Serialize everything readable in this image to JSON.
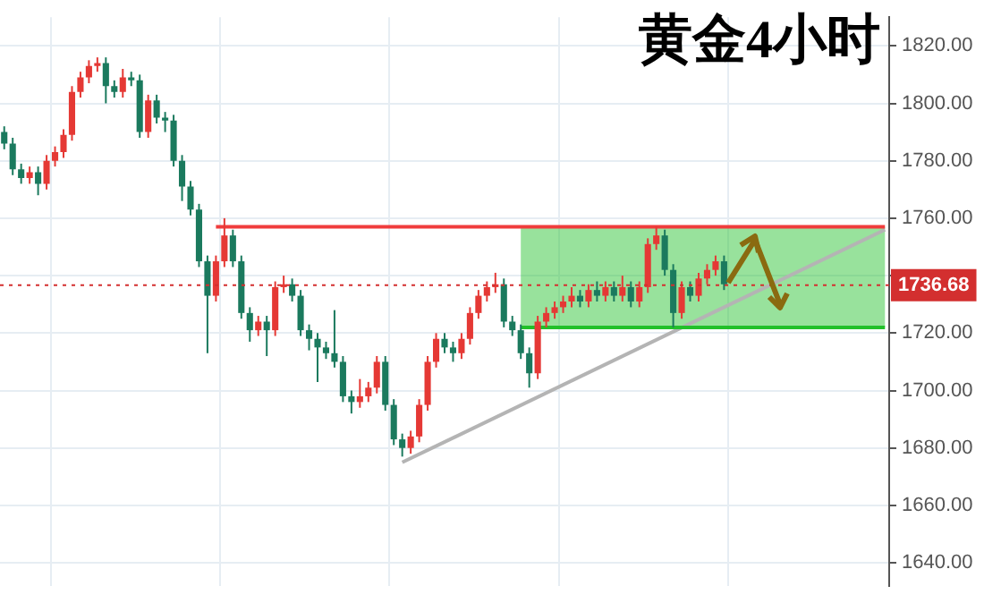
{
  "chart_data": {
    "type": "candlestick",
    "title": "黄金4小时",
    "categories": [
      null,
      null,
      null,
      null,
      null,
      null,
      null,
      null,
      null,
      null,
      null,
      null,
      null,
      null,
      null,
      null,
      null,
      null,
      null,
      null,
      null,
      null,
      null,
      null,
      null,
      null,
      null,
      null,
      null,
      null,
      null,
      null,
      null,
      null,
      null,
      null,
      null,
      null,
      null,
      null,
      null,
      null,
      null,
      null,
      null,
      null,
      null,
      null,
      null,
      null,
      null,
      null,
      null,
      null,
      null,
      null,
      null,
      null,
      null,
      null,
      null,
      null,
      null,
      null,
      null,
      null,
      null,
      null,
      null,
      null,
      null,
      null,
      null,
      null,
      null,
      null,
      null,
      null,
      null,
      null,
      null,
      null,
      null,
      null,
      null,
      null,
      null,
      null,
      null,
      null,
      null,
      null,
      null,
      null,
      null,
      null,
      null,
      null,
      null,
      null,
      null,
      null,
      null,
      null,
      null
    ],
    "ohlc": [
      [
        1790,
        1792,
        1784,
        1786
      ],
      [
        1786,
        1788,
        1775,
        1777
      ],
      [
        1777,
        1779,
        1772,
        1774
      ],
      [
        1774,
        1778,
        1772,
        1776
      ],
      [
        1776,
        1778,
        1768,
        1772
      ],
      [
        1772,
        1782,
        1770,
        1780
      ],
      [
        1780,
        1785,
        1778,
        1783
      ],
      [
        1783,
        1791,
        1781,
        1789
      ],
      [
        1789,
        1806,
        1787,
        1804
      ],
      [
        1804,
        1811,
        1802,
        1809
      ],
      [
        1809,
        1815,
        1807,
        1813
      ],
      [
        1813,
        1816,
        1811,
        1814
      ],
      [
        1814,
        1816,
        1800,
        1806
      ],
      [
        1806,
        1808,
        1802,
        1804
      ],
      [
        1804,
        1812,
        1802,
        1809
      ],
      [
        1809,
        1811,
        1806,
        1808
      ],
      [
        1808,
        1810,
        1788,
        1790
      ],
      [
        1790,
        1803,
        1788,
        1801
      ],
      [
        1801,
        1803,
        1793,
        1795
      ],
      [
        1795,
        1797,
        1790,
        1794
      ],
      [
        1794,
        1796,
        1778,
        1780
      ],
      [
        1780,
        1782,
        1766,
        1771
      ],
      [
        1771,
        1773,
        1761,
        1763
      ],
      [
        1763,
        1765,
        1743,
        1745
      ],
      [
        1745,
        1747,
        1713,
        1733
      ],
      [
        1733,
        1747,
        1731,
        1745
      ],
      [
        1745,
        1760,
        1743,
        1754
      ],
      [
        1754,
        1756,
        1743,
        1745
      ],
      [
        1745,
        1747,
        1725,
        1727
      ],
      [
        1727,
        1729,
        1717,
        1721
      ],
      [
        1721,
        1726,
        1719,
        1724
      ],
      [
        1724,
        1726,
        1712,
        1721
      ],
      [
        1721,
        1738,
        1719,
        1736
      ],
      [
        1736,
        1740,
        1734,
        1737
      ],
      [
        1737,
        1739,
        1731,
        1733
      ],
      [
        1733,
        1735,
        1719,
        1721
      ],
      [
        1721,
        1723,
        1714,
        1718
      ],
      [
        1718,
        1720,
        1703,
        1715
      ],
      [
        1715,
        1717,
        1711,
        1713
      ],
      [
        1713,
        1728,
        1708,
        1710
      ],
      [
        1710,
        1712,
        1696,
        1698
      ],
      [
        1698,
        1700,
        1692,
        1696
      ],
      [
        1696,
        1704,
        1694,
        1698
      ],
      [
        1698,
        1703,
        1696,
        1701
      ],
      [
        1701,
        1712,
        1699,
        1710
      ],
      [
        1710,
        1712,
        1693,
        1695
      ],
      [
        1695,
        1697,
        1681,
        1683
      ],
      [
        1683,
        1685,
        1677,
        1680
      ],
      [
        1680,
        1686,
        1678,
        1684
      ],
      [
        1684,
        1697,
        1682,
        1695
      ],
      [
        1695,
        1712,
        1693,
        1710
      ],
      [
        1710,
        1720,
        1708,
        1718
      ],
      [
        1718,
        1720,
        1713,
        1715
      ],
      [
        1715,
        1717,
        1710,
        1713
      ],
      [
        1713,
        1720,
        1711,
        1718
      ],
      [
        1718,
        1729,
        1716,
        1727
      ],
      [
        1727,
        1735,
        1725,
        1733
      ],
      [
        1733,
        1738,
        1731,
        1736
      ],
      [
        1736,
        1741,
        1734,
        1737
      ],
      [
        1737,
        1739,
        1722,
        1724
      ],
      [
        1724,
        1726,
        1719,
        1721
      ],
      [
        1721,
        1723,
        1711,
        1713
      ],
      [
        1713,
        1715,
        1701,
        1706
      ],
      [
        1706,
        1726,
        1704,
        1724
      ],
      [
        1724,
        1729,
        1722,
        1727
      ],
      [
        1727,
        1731,
        1725,
        1729
      ],
      [
        1729,
        1733,
        1727,
        1731
      ],
      [
        1731,
        1736,
        1729,
        1733
      ],
      [
        1733,
        1735,
        1729,
        1731
      ],
      [
        1731,
        1737,
        1729,
        1735
      ],
      [
        1735,
        1738,
        1731,
        1733
      ],
      [
        1733,
        1738,
        1731,
        1736
      ],
      [
        1736,
        1738,
        1731,
        1733
      ],
      [
        1733,
        1740,
        1731,
        1736
      ],
      [
        1736,
        1738,
        1729,
        1731
      ],
      [
        1731,
        1738,
        1729,
        1736
      ],
      [
        1736,
        1753,
        1734,
        1751
      ],
      [
        1751,
        1757,
        1749,
        1754
      ],
      [
        1754,
        1756,
        1740,
        1742
      ],
      [
        1742,
        1744,
        1722,
        1727
      ],
      [
        1727,
        1738,
        1725,
        1736
      ],
      [
        1736,
        1738,
        1731,
        1733
      ],
      [
        1733,
        1741,
        1731,
        1739
      ],
      [
        1739,
        1744,
        1737,
        1742
      ],
      [
        1742,
        1747,
        1740,
        1745
      ],
      [
        1745,
        1747,
        1735,
        1737
      ],
      null,
      null,
      null,
      null,
      null,
      null,
      null,
      null,
      null,
      null,
      null,
      null,
      null,
      null,
      null,
      null,
      null,
      null,
      null
    ],
    "colors": [
      "#1b7a5e",
      "#1b7a5e",
      "#1b7a5e",
      "#e53935",
      "#1b7a5e",
      "#e53935",
      "#e53935",
      "#e53935",
      "#e53935",
      "#e53935",
      "#e53935",
      "#e53935",
      "#1b7a5e",
      "#1b7a5e",
      "#e53935",
      "#1b7a5e",
      "#1b7a5e",
      "#e53935",
      "#1b7a5e",
      "#1b7a5e",
      "#1b7a5e",
      "#1b7a5e",
      "#1b7a5e",
      "#1b7a5e",
      "#1b7a5e",
      "#e53935",
      "#e53935",
      "#1b7a5e",
      "#1b7a5e",
      "#1b7a5e",
      "#e53935",
      "#1b7a5e",
      "#e53935",
      "#e53935",
      "#1b7a5e",
      "#1b7a5e",
      "#1b7a5e",
      "#1b7a5e",
      "#1b7a5e",
      "#1b7a5e",
      "#1b7a5e",
      "#1b7a5e",
      "#e53935",
      "#e53935",
      "#e53935",
      "#1b7a5e",
      "#1b7a5e",
      "#1b7a5e",
      "#e53935",
      "#e53935",
      "#e53935",
      "#e53935",
      "#1b7a5e",
      "#1b7a5e",
      "#e53935",
      "#e53935",
      "#e53935",
      "#e53935",
      "#e53935",
      "#1b7a5e",
      "#1b7a5e",
      "#1b7a5e",
      "#1b7a5e",
      "#e53935",
      "#e53935",
      "#e53935",
      "#e53935",
      "#e53935",
      "#1b7a5e",
      "#e53935",
      "#1b7a5e",
      "#e53935",
      "#1b7a5e",
      "#e53935",
      "#1b7a5e",
      "#e53935",
      "#e53935",
      "#e53935",
      "#1b7a5e",
      "#1b7a5e",
      "#e53935",
      "#1b7a5e",
      "#e53935",
      "#e53935",
      "#e53935",
      "#1b7a5e",
      null,
      null,
      null,
      null,
      null,
      null,
      null,
      null,
      null,
      null,
      null,
      null,
      null,
      null,
      null,
      null,
      null,
      null,
      null
    ],
    "series": [
      {
        "type": "line",
        "color": "#f03c3c",
        "values": [
          null,
          null,
          null,
          null,
          null,
          null,
          null,
          null,
          null,
          null,
          null,
          null,
          null,
          null,
          null,
          null,
          null,
          null,
          null,
          null,
          null,
          null,
          null,
          null,
          null,
          1757,
          1757,
          1757,
          1757,
          1757,
          1757,
          1757,
          1757,
          1757,
          1757,
          1757,
          1757,
          1757,
          1757,
          1757,
          1757,
          1757,
          1757,
          1757,
          1757,
          1757,
          1757,
          1757,
          1757,
          1757,
          1757,
          1757,
          1757,
          1757,
          1757,
          1757,
          1757,
          1757,
          1757,
          1757,
          1757,
          1757,
          1757,
          1757,
          1757,
          1757,
          1757,
          1757,
          1757,
          1757,
          1757,
          1757,
          1757,
          1757,
          1757,
          1757,
          1757,
          1757,
          1757,
          1757,
          1757,
          1757,
          1757,
          1757,
          1757,
          1757,
          1757,
          1757,
          1757,
          1757,
          1757,
          1757,
          1757,
          1757,
          1757,
          1757,
          1757,
          1757,
          1757,
          1757,
          1757,
          1757,
          1757,
          1757,
          1757
        ]
      },
      {
        "type": "line",
        "color": "#22c02a",
        "values": [
          null,
          null,
          null,
          null,
          null,
          null,
          null,
          null,
          null,
          null,
          null,
          null,
          null,
          null,
          null,
          null,
          null,
          null,
          null,
          null,
          null,
          null,
          null,
          null,
          null,
          null,
          null,
          null,
          null,
          null,
          null,
          null,
          null,
          null,
          null,
          null,
          null,
          null,
          null,
          null,
          null,
          null,
          null,
          null,
          null,
          null,
          null,
          null,
          null,
          null,
          null,
          null,
          null,
          null,
          null,
          null,
          null,
          null,
          null,
          null,
          null,
          1722,
          1722,
          1722,
          1722,
          1722,
          1722,
          1722,
          1722,
          1722,
          1722,
          1722,
          1722,
          1722,
          1722,
          1722,
          1722,
          1722,
          1722,
          1722,
          1722,
          1722,
          1722,
          1722,
          1722,
          1722,
          1722,
          1722,
          1722,
          1722,
          1722,
          1722,
          1722,
          1722,
          1722,
          1722,
          1722,
          1722,
          1722,
          1722,
          1722,
          1722,
          1722,
          1722,
          1722
        ],
        "lower": [
          null,
          null,
          null,
          null,
          null,
          null,
          null,
          null,
          null,
          null,
          null,
          null,
          null,
          null,
          null,
          null,
          null,
          null,
          null,
          null,
          null,
          null,
          null,
          null,
          null,
          null,
          null,
          null,
          null,
          null,
          null,
          null,
          null,
          null,
          null,
          null,
          null,
          null,
          null,
          null,
          null,
          null,
          null,
          null,
          null,
          null,
          null,
          null,
          null,
          null,
          null,
          null,
          null,
          null,
          null,
          null,
          null,
          null,
          null,
          null,
          null,
          1722,
          1722,
          1722,
          1722,
          1722,
          1722,
          1722,
          1722,
          1722,
          1722,
          1722,
          1722,
          1722,
          1722,
          1722,
          1722,
          1722,
          1722,
          1722,
          1722,
          1722,
          1722,
          1722,
          1722,
          1722,
          1722,
          1722,
          1722,
          1722,
          1722,
          1722,
          1722,
          1722,
          1722,
          1722,
          1722,
          1722,
          1722,
          1722,
          1722,
          1722,
          1722,
          1722,
          1722
        ],
        "upper": [
          null,
          null,
          null,
          null,
          null,
          null,
          null,
          null,
          null,
          null,
          null,
          null,
          null,
          null,
          null,
          null,
          null,
          null,
          null,
          null,
          null,
          null,
          null,
          null,
          null,
          null,
          null,
          null,
          null,
          null,
          null,
          null,
          null,
          null,
          null,
          null,
          null,
          null,
          null,
          null,
          null,
          null,
          null,
          null,
          null,
          null,
          null,
          null,
          null,
          null,
          null,
          null,
          null,
          null,
          null,
          null,
          null,
          null,
          null,
          null,
          null,
          1757,
          1757,
          1757,
          1757,
          1757,
          1757,
          1757,
          1757,
          1757,
          1757,
          1757,
          1757,
          1757,
          1757,
          1757,
          1757,
          1757,
          1757,
          1757,
          1757,
          1757,
          1757,
          1757,
          1757,
          1757,
          1757,
          1757,
          1757,
          1757,
          1757,
          1757,
          1757,
          1757,
          1757,
          1757,
          1757,
          1757,
          1757,
          1757,
          1757,
          1757,
          1757,
          1757,
          1757
        ]
      },
      {
        "type": "line",
        "color": "#b4b4b4",
        "values": [
          null,
          null,
          null,
          null,
          null,
          null,
          null,
          null,
          null,
          null,
          null,
          null,
          null,
          null,
          null,
          null,
          null,
          null,
          null,
          null,
          null,
          null,
          null,
          null,
          null,
          null,
          null,
          null,
          null,
          null,
          null,
          null,
          null,
          null,
          null,
          null,
          null,
          null,
          null,
          null,
          null,
          null,
          null,
          null,
          null,
          null,
          null,
          1675,
          null,
          null,
          null,
          null,
          null,
          null,
          null,
          null,
          null,
          null,
          null,
          null,
          null,
          null,
          null,
          null,
          null,
          null,
          null,
          null,
          null,
          null,
          null,
          null,
          null,
          null,
          null,
          null,
          null,
          null,
          null,
          null,
          null,
          null,
          null,
          null,
          null,
          null,
          null,
          null,
          null,
          null,
          null,
          null,
          null,
          null,
          null,
          null,
          null,
          null,
          null,
          null,
          null,
          null,
          null,
          null,
          1756
        ]
      }
    ],
    "ylim": [
      1632,
      1830
    ],
    "yticks": [
      {
        "value": 1640,
        "label": "1640.00"
      },
      {
        "value": 1660,
        "label": "1660.00"
      },
      {
        "value": 1680,
        "label": "1680.00"
      },
      {
        "value": 1700,
        "label": "1700.00"
      },
      {
        "value": 1720,
        "label": "1720.00"
      },
      {
        "value": 1740,
        "label": null
      },
      {
        "value": 1760,
        "label": "1760.00"
      },
      {
        "value": 1780,
        "label": "1780.00"
      },
      {
        "value": 1800,
        "label": "1800.00"
      },
      {
        "value": 1820,
        "label": "1820.00"
      }
    ],
    "ref_lines": [
      {
        "axis": "y",
        "value": 1736.68,
        "label": "1736.68",
        "color": "#d32f2f",
        "line_style": "dotted"
      }
    ],
    "grid": true,
    "legend": false,
    "tick_labels": "y",
    "line_style": "solid",
    "marker": "none"
  }
}
